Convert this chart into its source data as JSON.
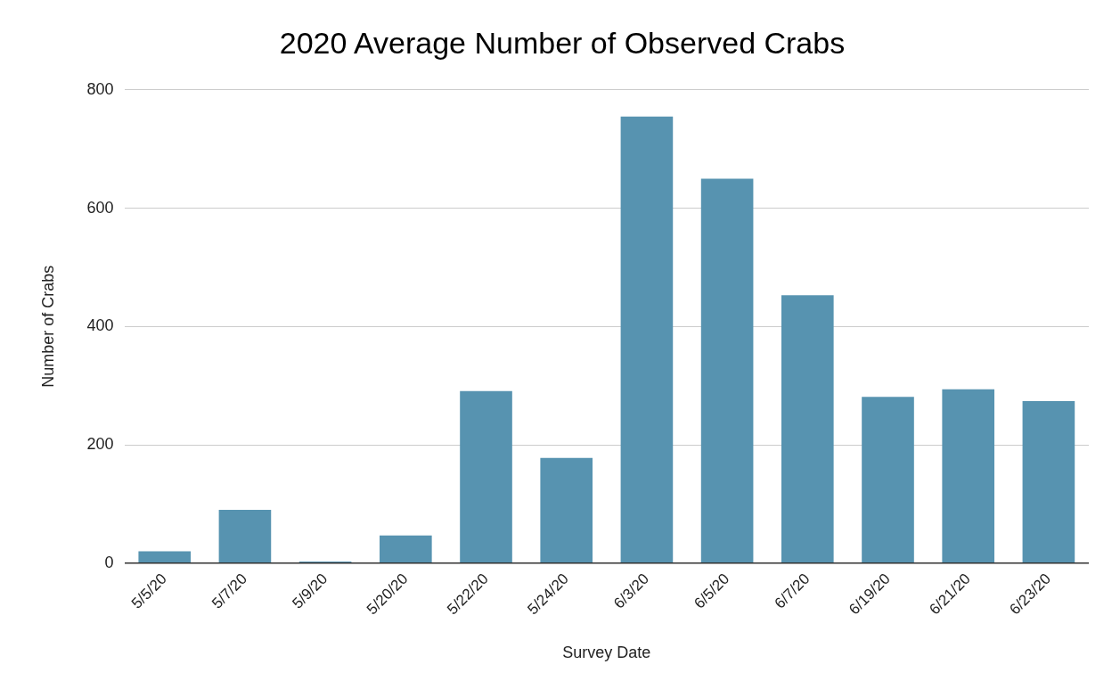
{
  "chart_data": {
    "type": "bar",
    "title": "2020 Average Number of Observed Crabs",
    "xlabel": "Survey Date",
    "ylabel": "Number of Crabs",
    "categories": [
      "5/5/20",
      "5/7/20",
      "5/9/20",
      "5/20/20",
      "5/22/20",
      "5/24/20",
      "6/3/20",
      "6/5/20",
      "6/7/20",
      "6/19/20",
      "6/21/20",
      "6/23/20"
    ],
    "values": [
      20,
      90,
      3,
      47,
      291,
      178,
      755,
      650,
      453,
      281,
      294,
      274
    ],
    "color": "#5793b0",
    "ylim": [
      0,
      800
    ],
    "yticks": [
      0,
      200,
      400,
      600,
      800
    ],
    "grid": "y",
    "legend": false
  }
}
